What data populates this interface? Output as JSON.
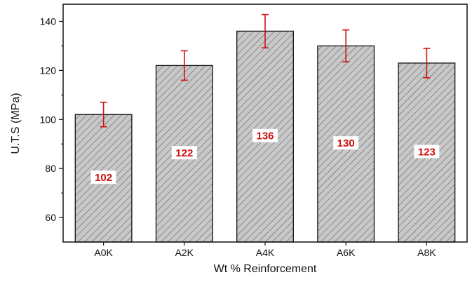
{
  "chart_data": {
    "type": "bar",
    "title": "",
    "xlabel": "Wt % Reinforcement",
    "ylabel": "U.T.S (MPa)",
    "categories": [
      "A0K",
      "A2K",
      "A4K",
      "A6K",
      "A8K"
    ],
    "values": [
      102,
      122,
      136,
      130,
      123
    ],
    "value_labels": [
      "102",
      "122",
      "136",
      "130",
      "123"
    ],
    "error": [
      5,
      6,
      6.8,
      6.5,
      6
    ],
    "ylim": [
      50,
      147
    ],
    "yticks": [
      60,
      80,
      100,
      120,
      140
    ],
    "ytick_labels": [
      "60",
      "80",
      "100",
      "120",
      "140"
    ],
    "grid": false,
    "bar_fill": "#c8c8c8",
    "hatch": "diagonal",
    "error_color": "#d01010",
    "label_color": "#d01010"
  }
}
